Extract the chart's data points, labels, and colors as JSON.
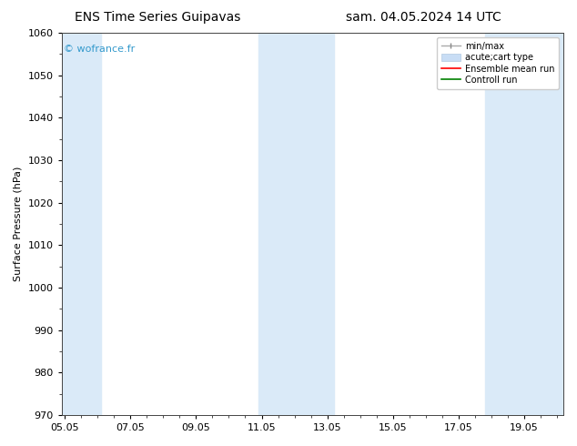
{
  "title_left": "ENS Time Series Guipavas",
  "title_right": "sam. 04.05.2024 14 UTC",
  "ylabel": "Surface Pressure (hPa)",
  "ylim": [
    970,
    1060
  ],
  "yticks": [
    970,
    980,
    990,
    1000,
    1010,
    1020,
    1030,
    1040,
    1050,
    1060
  ],
  "xlim_start": 4.9,
  "xlim_end": 20.2,
  "xtick_labels": [
    "05.05",
    "07.05",
    "09.05",
    "11.05",
    "13.05",
    "15.05",
    "17.05",
    "19.05"
  ],
  "xtick_positions": [
    5.0,
    7.0,
    9.0,
    11.0,
    13.0,
    15.0,
    17.0,
    19.0
  ],
  "bg_color": "#ffffff",
  "plot_bg_color": "#ffffff",
  "shaded_bands": [
    {
      "xmin": 4.9,
      "xmax": 6.1
    },
    {
      "xmin": 10.9,
      "xmax": 13.2
    },
    {
      "xmin": 17.8,
      "xmax": 20.2
    }
  ],
  "band_color": "#daeaf8",
  "watermark_text": "© wofrance.fr",
  "watermark_color": "#3399cc",
  "legend_entries": [
    {
      "label": "min/max",
      "style": "errbar"
    },
    {
      "label": "acute;cart type",
      "style": "fillbar"
    },
    {
      "label": "Ensemble mean run",
      "style": "line",
      "color": "#ff0000"
    },
    {
      "label": "Controll run",
      "style": "line",
      "color": "#008000"
    }
  ],
  "title_fontsize": 10,
  "axis_label_fontsize": 8,
  "tick_fontsize": 8,
  "watermark_fontsize": 8,
  "legend_fontsize": 7
}
